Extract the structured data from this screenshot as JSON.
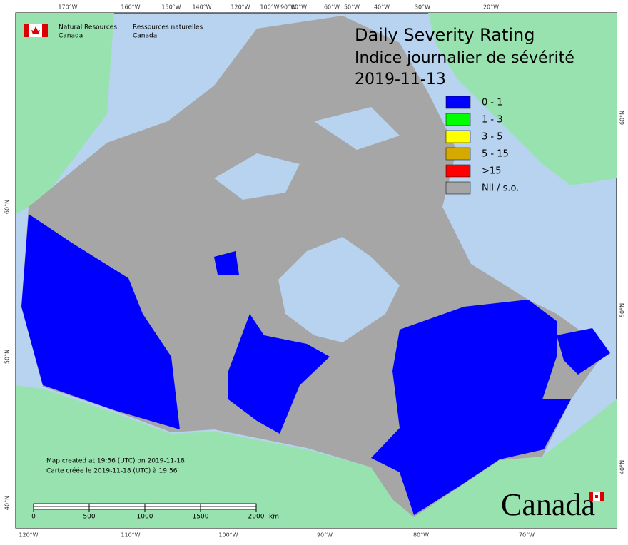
{
  "header": {
    "agency_en": [
      "Natural Resources",
      "Canada"
    ],
    "agency_fr": [
      "Ressources naturelles",
      "Canada"
    ]
  },
  "title": {
    "line1": "Daily Severity Rating",
    "line2": "Indice journalier de sévérité",
    "date": "2019-11-13"
  },
  "legend": [
    {
      "label": "0 - 1",
      "color": "#0000ff"
    },
    {
      "label": "1 - 3",
      "color": "#00ff00"
    },
    {
      "label": "3 - 5",
      "color": "#ffff00"
    },
    {
      "label": "5 - 15",
      "color": "#d4aa00"
    },
    {
      "label": ">15",
      "color": "#ff0000"
    },
    {
      "label": "Nil / s.o.",
      "color": "#a6a6a6"
    }
  ],
  "graticule": {
    "top": [
      "170°W",
      "160°W",
      "150°W",
      "140°W",
      "120°W",
      "100°W",
      "90°W",
      "80°W",
      "60°W",
      "50°W",
      "40°W",
      "30°W",
      "20°W"
    ],
    "bottom": [
      "120°W",
      "110°W",
      "100°W",
      "90°W",
      "80°W",
      "70°W"
    ],
    "left": [
      "60°N",
      "50°N",
      "40°N"
    ],
    "right": [
      "60°N",
      "50°N",
      "40°N"
    ]
  },
  "notes": [
    "Map created at 19:56 (UTC) on 2019-11-18",
    "Carte créée le 2019-11-18 (UTC) à 19:56"
  ],
  "scale_bar": {
    "ticks": [
      0,
      500,
      1000,
      1500,
      2000
    ],
    "unit": "km"
  },
  "wordmark": "Canada"
}
